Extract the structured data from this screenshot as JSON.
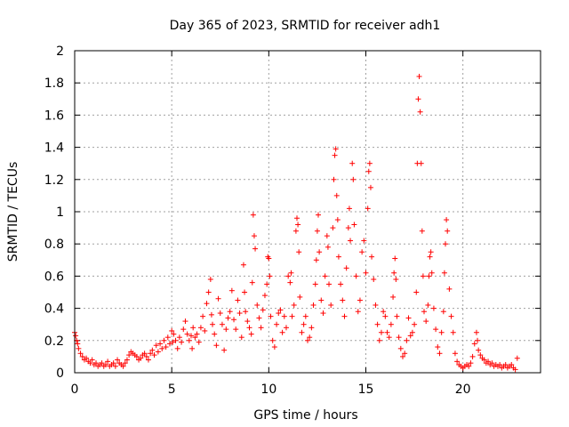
{
  "chart_data": {
    "type": "scatter",
    "title": "Day 365 of 2023, SRMTID for receiver adh1",
    "xlabel": "GPS time / hours",
    "ylabel": "SRMTID / TECUs",
    "xlim": [
      0,
      24
    ],
    "ylim": [
      0,
      2
    ],
    "xticks": [
      0,
      5,
      10,
      15,
      20
    ],
    "yticks": [
      0,
      0.2,
      0.4,
      0.6,
      0.8,
      1,
      1.2,
      1.4,
      1.6,
      1.8,
      2
    ],
    "xtick_labels": [
      "0",
      "5",
      "10",
      "15",
      "20"
    ],
    "ytick_labels": [
      "0",
      "0.2",
      "0.4",
      "0.6",
      "0.8",
      "1",
      "1.2",
      "1.4",
      "1.6",
      "1.8",
      "2"
    ],
    "grid": true,
    "marker": "+",
    "color": "#ff0000",
    "series": [
      {
        "name": "SRMTID",
        "points": [
          [
            0.0,
            0.25
          ],
          [
            0.05,
            0.23
          ],
          [
            0.1,
            0.2
          ],
          [
            0.15,
            0.18
          ],
          [
            0.2,
            0.15
          ],
          [
            0.3,
            0.12
          ],
          [
            0.4,
            0.1
          ],
          [
            0.5,
            0.08
          ],
          [
            0.6,
            0.09
          ],
          [
            0.7,
            0.07
          ],
          [
            0.8,
            0.06
          ],
          [
            0.9,
            0.08
          ],
          [
            1.0,
            0.05
          ],
          [
            1.1,
            0.06
          ],
          [
            1.2,
            0.04
          ],
          [
            1.3,
            0.05
          ],
          [
            1.4,
            0.06
          ],
          [
            1.5,
            0.04
          ],
          [
            1.6,
            0.05
          ],
          [
            1.7,
            0.07
          ],
          [
            1.8,
            0.04
          ],
          [
            1.9,
            0.05
          ],
          [
            2.0,
            0.06
          ],
          [
            2.1,
            0.04
          ],
          [
            2.2,
            0.08
          ],
          [
            2.3,
            0.06
          ],
          [
            2.4,
            0.05
          ],
          [
            2.5,
            0.04
          ],
          [
            2.6,
            0.06
          ],
          [
            2.7,
            0.08
          ],
          [
            2.8,
            0.11
          ],
          [
            2.9,
            0.13
          ],
          [
            3.0,
            0.12
          ],
          [
            3.1,
            0.11
          ],
          [
            3.2,
            0.1
          ],
          [
            3.3,
            0.08
          ],
          [
            3.4,
            0.09
          ],
          [
            3.5,
            0.11
          ],
          [
            3.6,
            0.12
          ],
          [
            3.7,
            0.1
          ],
          [
            3.8,
            0.08
          ],
          [
            3.9,
            0.12
          ],
          [
            4.0,
            0.14
          ],
          [
            4.1,
            0.11
          ],
          [
            4.2,
            0.17
          ],
          [
            4.3,
            0.13
          ],
          [
            4.4,
            0.18
          ],
          [
            4.5,
            0.15
          ],
          [
            4.6,
            0.2
          ],
          [
            4.7,
            0.16
          ],
          [
            4.8,
            0.22
          ],
          [
            4.9,
            0.18
          ],
          [
            5.0,
            0.26
          ],
          [
            5.05,
            0.19
          ],
          [
            5.1,
            0.24
          ],
          [
            5.2,
            0.2
          ],
          [
            5.3,
            0.15
          ],
          [
            5.4,
            0.22
          ],
          [
            5.5,
            0.19
          ],
          [
            5.6,
            0.27
          ],
          [
            5.7,
            0.32
          ],
          [
            5.8,
            0.24
          ],
          [
            5.9,
            0.2
          ],
          [
            6.0,
            0.23
          ],
          [
            6.05,
            0.15
          ],
          [
            6.1,
            0.28
          ],
          [
            6.2,
            0.22
          ],
          [
            6.3,
            0.24
          ],
          [
            6.4,
            0.19
          ],
          [
            6.5,
            0.28
          ],
          [
            6.6,
            0.35
          ],
          [
            6.7,
            0.26
          ],
          [
            6.8,
            0.43
          ],
          [
            6.9,
            0.5
          ],
          [
            7.0,
            0.58
          ],
          [
            7.05,
            0.36
          ],
          [
            7.1,
            0.3
          ],
          [
            7.2,
            0.24
          ],
          [
            7.3,
            0.17
          ],
          [
            7.4,
            0.46
          ],
          [
            7.5,
            0.37
          ],
          [
            7.6,
            0.3
          ],
          [
            7.7,
            0.14
          ],
          [
            7.8,
            0.27
          ],
          [
            7.9,
            0.34
          ],
          [
            8.0,
            0.38
          ],
          [
            8.1,
            0.51
          ],
          [
            8.2,
            0.33
          ],
          [
            8.3,
            0.27
          ],
          [
            8.4,
            0.45
          ],
          [
            8.5,
            0.37
          ],
          [
            8.6,
            0.22
          ],
          [
            8.7,
            0.67
          ],
          [
            8.75,
            0.5
          ],
          [
            8.8,
            0.38
          ],
          [
            8.9,
            0.32
          ],
          [
            9.0,
            0.28
          ],
          [
            9.1,
            0.24
          ],
          [
            9.15,
            0.56
          ],
          [
            9.2,
            0.98
          ],
          [
            9.25,
            0.85
          ],
          [
            9.3,
            0.77
          ],
          [
            9.4,
            0.42
          ],
          [
            9.5,
            0.34
          ],
          [
            9.6,
            0.28
          ],
          [
            9.7,
            0.39
          ],
          [
            9.8,
            0.48
          ],
          [
            9.9,
            0.55
          ],
          [
            9.95,
            0.72
          ],
          [
            10.0,
            0.71
          ],
          [
            10.05,
            0.6
          ],
          [
            10.1,
            0.35
          ],
          [
            10.2,
            0.2
          ],
          [
            10.3,
            0.16
          ],
          [
            10.4,
            0.3
          ],
          [
            10.5,
            0.37
          ],
          [
            10.6,
            0.39
          ],
          [
            10.7,
            0.25
          ],
          [
            10.8,
            0.35
          ],
          [
            10.9,
            0.28
          ],
          [
            11.0,
            0.6
          ],
          [
            11.1,
            0.56
          ],
          [
            11.15,
            0.62
          ],
          [
            11.2,
            0.35
          ],
          [
            11.3,
            0.42
          ],
          [
            11.4,
            0.88
          ],
          [
            11.45,
            0.96
          ],
          [
            11.5,
            0.92
          ],
          [
            11.55,
            0.75
          ],
          [
            11.6,
            0.47
          ],
          [
            11.7,
            0.25
          ],
          [
            11.8,
            0.3
          ],
          [
            11.9,
            0.35
          ],
          [
            12.0,
            0.2
          ],
          [
            12.1,
            0.22
          ],
          [
            12.2,
            0.28
          ],
          [
            12.3,
            0.42
          ],
          [
            12.4,
            0.55
          ],
          [
            12.45,
            0.7
          ],
          [
            12.5,
            0.88
          ],
          [
            12.55,
            0.98
          ],
          [
            12.6,
            0.75
          ],
          [
            12.7,
            0.45
          ],
          [
            12.8,
            0.37
          ],
          [
            12.9,
            0.6
          ],
          [
            13.0,
            0.85
          ],
          [
            13.05,
            0.78
          ],
          [
            13.1,
            0.55
          ],
          [
            13.2,
            0.42
          ],
          [
            13.3,
            0.9
          ],
          [
            13.35,
            1.2
          ],
          [
            13.4,
            1.35
          ],
          [
            13.45,
            1.39
          ],
          [
            13.5,
            1.1
          ],
          [
            13.55,
            0.95
          ],
          [
            13.6,
            0.72
          ],
          [
            13.7,
            0.55
          ],
          [
            13.8,
            0.45
          ],
          [
            13.9,
            0.35
          ],
          [
            14.0,
            0.65
          ],
          [
            14.1,
            0.9
          ],
          [
            14.15,
            1.02
          ],
          [
            14.2,
            0.82
          ],
          [
            14.3,
            1.3
          ],
          [
            14.35,
            1.2
          ],
          [
            14.4,
            0.92
          ],
          [
            14.5,
            0.6
          ],
          [
            14.6,
            0.38
          ],
          [
            14.7,
            0.45
          ],
          [
            14.8,
            0.75
          ],
          [
            14.9,
            0.82
          ],
          [
            15.0,
            0.62
          ],
          [
            15.1,
            1.02
          ],
          [
            15.15,
            1.25
          ],
          [
            15.2,
            1.3
          ],
          [
            15.25,
            1.15
          ],
          [
            15.3,
            0.72
          ],
          [
            15.4,
            0.58
          ],
          [
            15.5,
            0.42
          ],
          [
            15.6,
            0.3
          ],
          [
            15.7,
            0.2
          ],
          [
            15.8,
            0.25
          ],
          [
            15.9,
            0.38
          ],
          [
            16.0,
            0.35
          ],
          [
            16.1,
            0.25
          ],
          [
            16.2,
            0.22
          ],
          [
            16.3,
            0.3
          ],
          [
            16.4,
            0.47
          ],
          [
            16.45,
            0.62
          ],
          [
            16.5,
            0.71
          ],
          [
            16.55,
            0.58
          ],
          [
            16.6,
            0.35
          ],
          [
            16.7,
            0.22
          ],
          [
            16.8,
            0.15
          ],
          [
            16.9,
            0.1
          ],
          [
            17.0,
            0.12
          ],
          [
            17.1,
            0.2
          ],
          [
            17.2,
            0.34
          ],
          [
            17.3,
            0.23
          ],
          [
            17.4,
            0.25
          ],
          [
            17.5,
            0.3
          ],
          [
            17.6,
            0.5
          ],
          [
            17.65,
            1.3
          ],
          [
            17.7,
            1.7
          ],
          [
            17.75,
            1.84
          ],
          [
            17.8,
            1.62
          ],
          [
            17.85,
            1.3
          ],
          [
            17.9,
            0.88
          ],
          [
            17.95,
            0.6
          ],
          [
            18.0,
            0.38
          ],
          [
            18.1,
            0.32
          ],
          [
            18.2,
            0.42
          ],
          [
            18.25,
            0.6
          ],
          [
            18.3,
            0.72
          ],
          [
            18.35,
            0.75
          ],
          [
            18.4,
            0.62
          ],
          [
            18.5,
            0.4
          ],
          [
            18.6,
            0.27
          ],
          [
            18.7,
            0.16
          ],
          [
            18.8,
            0.12
          ],
          [
            18.9,
            0.25
          ],
          [
            19.0,
            0.38
          ],
          [
            19.05,
            0.62
          ],
          [
            19.1,
            0.8
          ],
          [
            19.15,
            0.95
          ],
          [
            19.2,
            0.88
          ],
          [
            19.3,
            0.52
          ],
          [
            19.4,
            0.35
          ],
          [
            19.5,
            0.25
          ],
          [
            19.6,
            0.12
          ],
          [
            19.7,
            0.07
          ],
          [
            19.8,
            0.05
          ],
          [
            19.9,
            0.04
          ],
          [
            20.0,
            0.03
          ],
          [
            20.1,
            0.04
          ],
          [
            20.2,
            0.05
          ],
          [
            20.3,
            0.04
          ],
          [
            20.4,
            0.06
          ],
          [
            20.5,
            0.1
          ],
          [
            20.6,
            0.18
          ],
          [
            20.7,
            0.25
          ],
          [
            20.75,
            0.2
          ],
          [
            20.8,
            0.14
          ],
          [
            20.9,
            0.11
          ],
          [
            21.0,
            0.09
          ],
          [
            21.1,
            0.08
          ],
          [
            21.2,
            0.06
          ],
          [
            21.3,
            0.07
          ],
          [
            21.4,
            0.05
          ],
          [
            21.5,
            0.06
          ],
          [
            21.6,
            0.04
          ],
          [
            21.7,
            0.05
          ],
          [
            21.8,
            0.04
          ],
          [
            21.9,
            0.05
          ],
          [
            22.0,
            0.03
          ],
          [
            22.1,
            0.04
          ],
          [
            22.2,
            0.05
          ],
          [
            22.3,
            0.03
          ],
          [
            22.4,
            0.04
          ],
          [
            22.5,
            0.05
          ],
          [
            22.6,
            0.03
          ],
          [
            22.7,
            0.02
          ],
          [
            22.8,
            0.09
          ]
        ]
      }
    ]
  }
}
